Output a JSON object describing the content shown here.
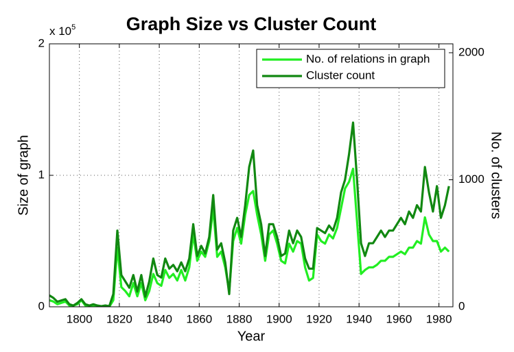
{
  "chart_data": {
    "type": "line",
    "title": "Graph Size vs Cluster Count",
    "x_label": "Year",
    "y_label": "Size of graph",
    "y2_label": "No. of clusters",
    "y_multiplier": {
      "base": "x 10",
      "exponent": "5"
    },
    "xlim": [
      1785,
      1987
    ],
    "xticks": [
      1800,
      1820,
      1840,
      1860,
      1880,
      1900,
      1920,
      1940,
      1960,
      1980
    ],
    "ylim": [
      0,
      2
    ],
    "yticks": [
      0,
      1,
      2
    ],
    "y2lim": [
      0,
      2070
    ],
    "y2ticks": [
      0,
      1000,
      2000
    ],
    "grid": true,
    "legend": "upper right",
    "x": [
      1785,
      1787,
      1789,
      1791,
      1793,
      1795,
      1797,
      1799,
      1801,
      1803,
      1805,
      1807,
      1809,
      1811,
      1813,
      1815,
      1817,
      1819,
      1821,
      1823,
      1825,
      1827,
      1829,
      1831,
      1833,
      1835,
      1837,
      1839,
      1841,
      1843,
      1845,
      1847,
      1849,
      1851,
      1853,
      1855,
      1857,
      1859,
      1861,
      1863,
      1865,
      1867,
      1869,
      1871,
      1873,
      1875,
      1877,
      1879,
      1881,
      1883,
      1885,
      1887,
      1889,
      1891,
      1893,
      1895,
      1897,
      1899,
      1901,
      1903,
      1905,
      1907,
      1909,
      1911,
      1913,
      1915,
      1917,
      1919,
      1921,
      1923,
      1925,
      1927,
      1929,
      1931,
      1933,
      1935,
      1937,
      1939,
      1941,
      1943,
      1945,
      1947,
      1949,
      1951,
      1953,
      1955,
      1957,
      1959,
      1961,
      1963,
      1965,
      1967,
      1969,
      1971,
      1973,
      1975,
      1977,
      1979,
      1981,
      1983,
      1985
    ],
    "series": [
      {
        "name": "No. of relations in graph",
        "color": "#22ee22",
        "axis": "y",
        "values": [
          0.05,
          0.04,
          0.02,
          0.03,
          0.04,
          0.01,
          0.01,
          0.02,
          0.05,
          0.01,
          0.01,
          0.01,
          0,
          0,
          0.01,
          0,
          0.05,
          0.45,
          0.15,
          0.12,
          0.08,
          0.18,
          0.08,
          0.18,
          0.05,
          0.12,
          0.25,
          0.18,
          0.16,
          0.28,
          0.22,
          0.25,
          0.2,
          0.28,
          0.2,
          0.3,
          0.55,
          0.35,
          0.42,
          0.38,
          0.5,
          0.75,
          0.38,
          0.42,
          0.3,
          0.12,
          0.5,
          0.6,
          0.48,
          0.7,
          0.85,
          0.88,
          0.7,
          0.55,
          0.35,
          0.55,
          0.58,
          0.48,
          0.35,
          0.33,
          0.48,
          0.42,
          0.5,
          0.48,
          0.3,
          0.2,
          0.22,
          0.55,
          0.5,
          0.48,
          0.55,
          0.52,
          0.6,
          0.75,
          0.9,
          0.95,
          1.05,
          0.65,
          0.25,
          0.28,
          0.3,
          0.3,
          0.32,
          0.35,
          0.35,
          0.38,
          0.38,
          0.4,
          0.42,
          0.4,
          0.45,
          0.45,
          0.5,
          0.48,
          0.68,
          0.55,
          0.5,
          0.5,
          0.42,
          0.45,
          0.42
        ]
      },
      {
        "name": "Cluster count",
        "color": "#118811",
        "axis": "y2",
        "values": [
          90,
          70,
          40,
          50,
          60,
          20,
          10,
          30,
          60,
          20,
          10,
          20,
          10,
          5,
          10,
          5,
          100,
          600,
          250,
          200,
          150,
          250,
          120,
          250,
          80,
          200,
          380,
          250,
          230,
          380,
          300,
          330,
          280,
          350,
          280,
          380,
          650,
          400,
          480,
          420,
          550,
          880,
          450,
          500,
          350,
          100,
          600,
          700,
          550,
          800,
          1100,
          1230,
          800,
          650,
          400,
          650,
          650,
          550,
          400,
          420,
          600,
          500,
          600,
          550,
          380,
          300,
          300,
          620,
          600,
          580,
          640,
          600,
          700,
          900,
          1000,
          1200,
          1450,
          1000,
          500,
          400,
          500,
          500,
          550,
          600,
          550,
          600,
          600,
          650,
          700,
          650,
          750,
          700,
          800,
          750,
          1100,
          900,
          750,
          950,
          700,
          800,
          950
        ]
      }
    ]
  }
}
